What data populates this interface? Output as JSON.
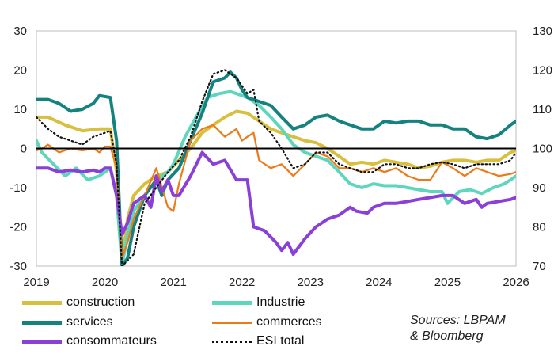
{
  "chart_data": {
    "type": "line",
    "title": "",
    "xlabel": "",
    "ylabel": "",
    "ylim": [
      -30,
      30
    ],
    "y2lim": [
      70,
      130
    ],
    "yticks": [
      "30",
      "20",
      "10",
      "0",
      "-10",
      "-20",
      "-30"
    ],
    "y2ticks": [
      "130",
      "120",
      "110",
      "100",
      "90",
      "80",
      "70"
    ],
    "xticks": [
      "2019",
      "2020",
      "2021",
      "2022",
      "2023",
      "2024",
      "2025",
      "2026"
    ],
    "xrange": [
      2019.0,
      2026.0
    ],
    "zero_line": true,
    "series": [
      {
        "name": "construction",
        "color": "#D9BF3E",
        "axis": "left",
        "points": [
          [
            2019.0,
            8
          ],
          [
            2019.17,
            8
          ],
          [
            2019.42,
            6
          ],
          [
            2019.67,
            4.5
          ],
          [
            2019.92,
            5
          ],
          [
            2020.08,
            5
          ],
          [
            2020.17,
            -6
          ],
          [
            2020.25,
            -29
          ],
          [
            2020.33,
            -18
          ],
          [
            2020.42,
            -12
          ],
          [
            2020.58,
            -9
          ],
          [
            2020.75,
            -7
          ],
          [
            2020.92,
            -6
          ],
          [
            2021.08,
            -3
          ],
          [
            2021.25,
            0
          ],
          [
            2021.42,
            4
          ],
          [
            2021.58,
            6
          ],
          [
            2021.75,
            8
          ],
          [
            2021.92,
            9.5
          ],
          [
            2022.08,
            9
          ],
          [
            2022.25,
            7
          ],
          [
            2022.42,
            5
          ],
          [
            2022.58,
            4
          ],
          [
            2022.75,
            3
          ],
          [
            2022.92,
            2
          ],
          [
            2023.08,
            1.5
          ],
          [
            2023.25,
            0
          ],
          [
            2023.42,
            -2
          ],
          [
            2023.58,
            -4
          ],
          [
            2023.75,
            -3.5
          ],
          [
            2023.92,
            -4
          ],
          [
            2024.08,
            -3
          ],
          [
            2024.25,
            -3.5
          ],
          [
            2024.42,
            -4
          ],
          [
            2024.58,
            -5
          ],
          [
            2024.75,
            -4.5
          ],
          [
            2024.92,
            -3.5
          ],
          [
            2025.08,
            -3
          ],
          [
            2025.25,
            -3
          ],
          [
            2025.42,
            -3.5
          ],
          [
            2025.58,
            -3
          ],
          [
            2025.75,
            -3
          ],
          [
            2025.92,
            -1
          ],
          [
            2026.0,
            -0.5
          ]
        ]
      },
      {
        "name": "Industrie",
        "color": "#5ED6BD",
        "axis": "left",
        "points": [
          [
            2019.0,
            2
          ],
          [
            2019.08,
            -1
          ],
          [
            2019.25,
            -4
          ],
          [
            2019.42,
            -7
          ],
          [
            2019.58,
            -5
          ],
          [
            2019.75,
            -8
          ],
          [
            2019.92,
            -7
          ],
          [
            2020.0,
            -6
          ],
          [
            2020.08,
            -5
          ],
          [
            2020.17,
            -12
          ],
          [
            2020.25,
            -30
          ],
          [
            2020.33,
            -22
          ],
          [
            2020.42,
            -16
          ],
          [
            2020.58,
            -12
          ],
          [
            2020.75,
            -8
          ],
          [
            2020.92,
            -6
          ],
          [
            2021.0,
            -4
          ],
          [
            2021.17,
            3
          ],
          [
            2021.33,
            8
          ],
          [
            2021.5,
            13
          ],
          [
            2021.67,
            14
          ],
          [
            2021.83,
            14.5
          ],
          [
            2021.92,
            14
          ],
          [
            2022.08,
            13
          ],
          [
            2022.25,
            11
          ],
          [
            2022.42,
            8
          ],
          [
            2022.58,
            5
          ],
          [
            2022.75,
            1
          ],
          [
            2022.92,
            -1
          ],
          [
            2023.08,
            -2
          ],
          [
            2023.25,
            -3
          ],
          [
            2023.42,
            -6
          ],
          [
            2023.58,
            -9
          ],
          [
            2023.75,
            -10
          ],
          [
            2023.92,
            -9
          ],
          [
            2024.08,
            -9.5
          ],
          [
            2024.25,
            -9.5
          ],
          [
            2024.42,
            -10
          ],
          [
            2024.58,
            -10.5
          ],
          [
            2024.75,
            -11
          ],
          [
            2024.92,
            -11
          ],
          [
            2025.0,
            -14
          ],
          [
            2025.17,
            -11
          ],
          [
            2025.33,
            -10.5
          ],
          [
            2025.5,
            -11.5
          ],
          [
            2025.67,
            -10
          ],
          [
            2025.83,
            -9
          ],
          [
            2025.92,
            -8
          ],
          [
            2026.0,
            -7
          ]
        ]
      },
      {
        "name": "services",
        "color": "#14827E",
        "axis": "left",
        "points": [
          [
            2019.0,
            12.5
          ],
          [
            2019.17,
            12.5
          ],
          [
            2019.33,
            11.5
          ],
          [
            2019.5,
            9.5
          ],
          [
            2019.67,
            10
          ],
          [
            2019.83,
            11.5
          ],
          [
            2019.92,
            13.5
          ],
          [
            2020.08,
            13
          ],
          [
            2020.17,
            2
          ],
          [
            2020.25,
            -30
          ],
          [
            2020.33,
            -28
          ],
          [
            2020.42,
            -20
          ],
          [
            2020.58,
            -12
          ],
          [
            2020.75,
            -8
          ],
          [
            2020.83,
            -12
          ],
          [
            2020.92,
            -8
          ],
          [
            2021.08,
            -5
          ],
          [
            2021.25,
            2
          ],
          [
            2021.42,
            9
          ],
          [
            2021.58,
            17
          ],
          [
            2021.75,
            18
          ],
          [
            2021.83,
            19.5
          ],
          [
            2021.92,
            18
          ],
          [
            2022.0,
            15
          ],
          [
            2022.08,
            13
          ],
          [
            2022.17,
            12.5
          ],
          [
            2022.25,
            12
          ],
          [
            2022.42,
            11
          ],
          [
            2022.58,
            8
          ],
          [
            2022.75,
            5
          ],
          [
            2022.92,
            6
          ],
          [
            2023.08,
            8
          ],
          [
            2023.25,
            8.5
          ],
          [
            2023.42,
            7
          ],
          [
            2023.58,
            6
          ],
          [
            2023.75,
            5
          ],
          [
            2023.92,
            5
          ],
          [
            2024.08,
            7
          ],
          [
            2024.25,
            6.5
          ],
          [
            2024.42,
            7
          ],
          [
            2024.58,
            7
          ],
          [
            2024.75,
            6
          ],
          [
            2024.92,
            6
          ],
          [
            2025.08,
            5
          ],
          [
            2025.25,
            5
          ],
          [
            2025.42,
            3
          ],
          [
            2025.58,
            2.5
          ],
          [
            2025.75,
            3.5
          ],
          [
            2025.92,
            6
          ],
          [
            2026.0,
            7
          ]
        ]
      },
      {
        "name": "commerces",
        "color": "#EE7A17",
        "axis": "left",
        "points": [
          [
            2019.0,
            -0.5
          ],
          [
            2019.08,
            0
          ],
          [
            2019.17,
            1
          ],
          [
            2019.33,
            -1
          ],
          [
            2019.5,
            0
          ],
          [
            2019.67,
            -0.5
          ],
          [
            2019.83,
            0
          ],
          [
            2019.92,
            -1
          ],
          [
            2020.0,
            0.5
          ],
          [
            2020.08,
            0.5
          ],
          [
            2020.17,
            -5
          ],
          [
            2020.25,
            -28
          ],
          [
            2020.33,
            -24
          ],
          [
            2020.42,
            -18
          ],
          [
            2020.58,
            -12
          ],
          [
            2020.75,
            -5
          ],
          [
            2020.92,
            -15
          ],
          [
            2021.0,
            -16
          ],
          [
            2021.08,
            -9
          ],
          [
            2021.25,
            2
          ],
          [
            2021.42,
            5
          ],
          [
            2021.58,
            6
          ],
          [
            2021.75,
            3
          ],
          [
            2021.92,
            5
          ],
          [
            2022.0,
            2
          ],
          [
            2022.08,
            3
          ],
          [
            2022.17,
            4
          ],
          [
            2022.25,
            -3
          ],
          [
            2022.42,
            -5
          ],
          [
            2022.58,
            -4
          ],
          [
            2022.75,
            -7
          ],
          [
            2022.92,
            -4
          ],
          [
            2023.08,
            -1
          ],
          [
            2023.25,
            -2
          ],
          [
            2023.42,
            -5
          ],
          [
            2023.58,
            -5
          ],
          [
            2023.75,
            -6
          ],
          [
            2023.92,
            -5
          ],
          [
            2024.08,
            -6
          ],
          [
            2024.25,
            -5
          ],
          [
            2024.42,
            -7
          ],
          [
            2024.58,
            -8
          ],
          [
            2024.75,
            -8
          ],
          [
            2024.92,
            -3.5
          ],
          [
            2025.08,
            -5
          ],
          [
            2025.25,
            -7
          ],
          [
            2025.42,
            -5
          ],
          [
            2025.58,
            -6
          ],
          [
            2025.75,
            -7
          ],
          [
            2025.92,
            -6.5
          ],
          [
            2026.0,
            -6
          ]
        ]
      },
      {
        "name": "consommateurs",
        "color": "#8A3FD6",
        "axis": "left",
        "points": [
          [
            2019.0,
            -5
          ],
          [
            2019.17,
            -5
          ],
          [
            2019.33,
            -6
          ],
          [
            2019.5,
            -5.5
          ],
          [
            2019.67,
            -6
          ],
          [
            2019.83,
            -5.5
          ],
          [
            2019.92,
            -6
          ],
          [
            2020.0,
            -5
          ],
          [
            2020.08,
            -5
          ],
          [
            2020.17,
            -12
          ],
          [
            2020.25,
            -22
          ],
          [
            2020.33,
            -19
          ],
          [
            2020.42,
            -14
          ],
          [
            2020.58,
            -12
          ],
          [
            2020.67,
            -15
          ],
          [
            2020.75,
            -7
          ],
          [
            2020.83,
            -11
          ],
          [
            2020.92,
            -8
          ],
          [
            2021.0,
            -12
          ],
          [
            2021.08,
            -12
          ],
          [
            2021.25,
            -7
          ],
          [
            2021.42,
            -1
          ],
          [
            2021.58,
            -4
          ],
          [
            2021.75,
            -3
          ],
          [
            2021.92,
            -8
          ],
          [
            2022.08,
            -8
          ],
          [
            2022.17,
            -20
          ],
          [
            2022.33,
            -21
          ],
          [
            2022.5,
            -24
          ],
          [
            2022.58,
            -26
          ],
          [
            2022.67,
            -24
          ],
          [
            2022.75,
            -27
          ],
          [
            2022.92,
            -23
          ],
          [
            2023.08,
            -20
          ],
          [
            2023.25,
            -18
          ],
          [
            2023.42,
            -17
          ],
          [
            2023.58,
            -15
          ],
          [
            2023.67,
            -16
          ],
          [
            2023.83,
            -16.5
          ],
          [
            2023.92,
            -15
          ],
          [
            2024.08,
            -14
          ],
          [
            2024.25,
            -14
          ],
          [
            2024.42,
            -13.5
          ],
          [
            2024.58,
            -13
          ],
          [
            2024.75,
            -12.5
          ],
          [
            2024.92,
            -12
          ],
          [
            2025.08,
            -12
          ],
          [
            2025.25,
            -14
          ],
          [
            2025.42,
            -13
          ],
          [
            2025.5,
            -15
          ],
          [
            2025.58,
            -14
          ],
          [
            2025.75,
            -13.5
          ],
          [
            2025.92,
            -13
          ],
          [
            2026.0,
            -12.5
          ]
        ]
      },
      {
        "name": "ESI total",
        "color": "#111111",
        "axis": "right",
        "dashed": true,
        "points": [
          [
            2019.0,
            108
          ],
          [
            2019.17,
            105
          ],
          [
            2019.33,
            103
          ],
          [
            2019.5,
            102
          ],
          [
            2019.67,
            101
          ],
          [
            2019.83,
            103
          ],
          [
            2020.0,
            104
          ],
          [
            2020.08,
            104.5
          ],
          [
            2020.17,
            96
          ],
          [
            2020.25,
            70
          ],
          [
            2020.42,
            73
          ],
          [
            2020.58,
            86
          ],
          [
            2020.75,
            90
          ],
          [
            2020.92,
            94
          ],
          [
            2021.08,
            97
          ],
          [
            2021.25,
            103
          ],
          [
            2021.42,
            112
          ],
          [
            2021.58,
            119
          ],
          [
            2021.75,
            120
          ],
          [
            2021.92,
            118
          ],
          [
            2022.08,
            114
          ],
          [
            2022.17,
            115
          ],
          [
            2022.25,
            107
          ],
          [
            2022.42,
            104
          ],
          [
            2022.58,
            100
          ],
          [
            2022.75,
            95
          ],
          [
            2022.92,
            96
          ],
          [
            2023.08,
            99
          ],
          [
            2023.25,
            99
          ],
          [
            2023.42,
            96
          ],
          [
            2023.58,
            95
          ],
          [
            2023.75,
            94
          ],
          [
            2023.92,
            94
          ],
          [
            2024.08,
            96
          ],
          [
            2024.25,
            96
          ],
          [
            2024.42,
            95
          ],
          [
            2024.58,
            95
          ],
          [
            2024.75,
            96
          ],
          [
            2024.92,
            96.5
          ],
          [
            2025.08,
            96
          ],
          [
            2025.25,
            95
          ],
          [
            2025.42,
            96
          ],
          [
            2025.58,
            96
          ],
          [
            2025.75,
            96
          ],
          [
            2025.92,
            97
          ],
          [
            2026.0,
            99
          ]
        ]
      }
    ],
    "legend": [
      "construction",
      "Industrie",
      "services",
      "commerces",
      "consommateurs",
      "ESI total"
    ],
    "legend_position": "bottom"
  },
  "source_lines": [
    "Sources: LBPAM",
    "& Bloomberg"
  ]
}
